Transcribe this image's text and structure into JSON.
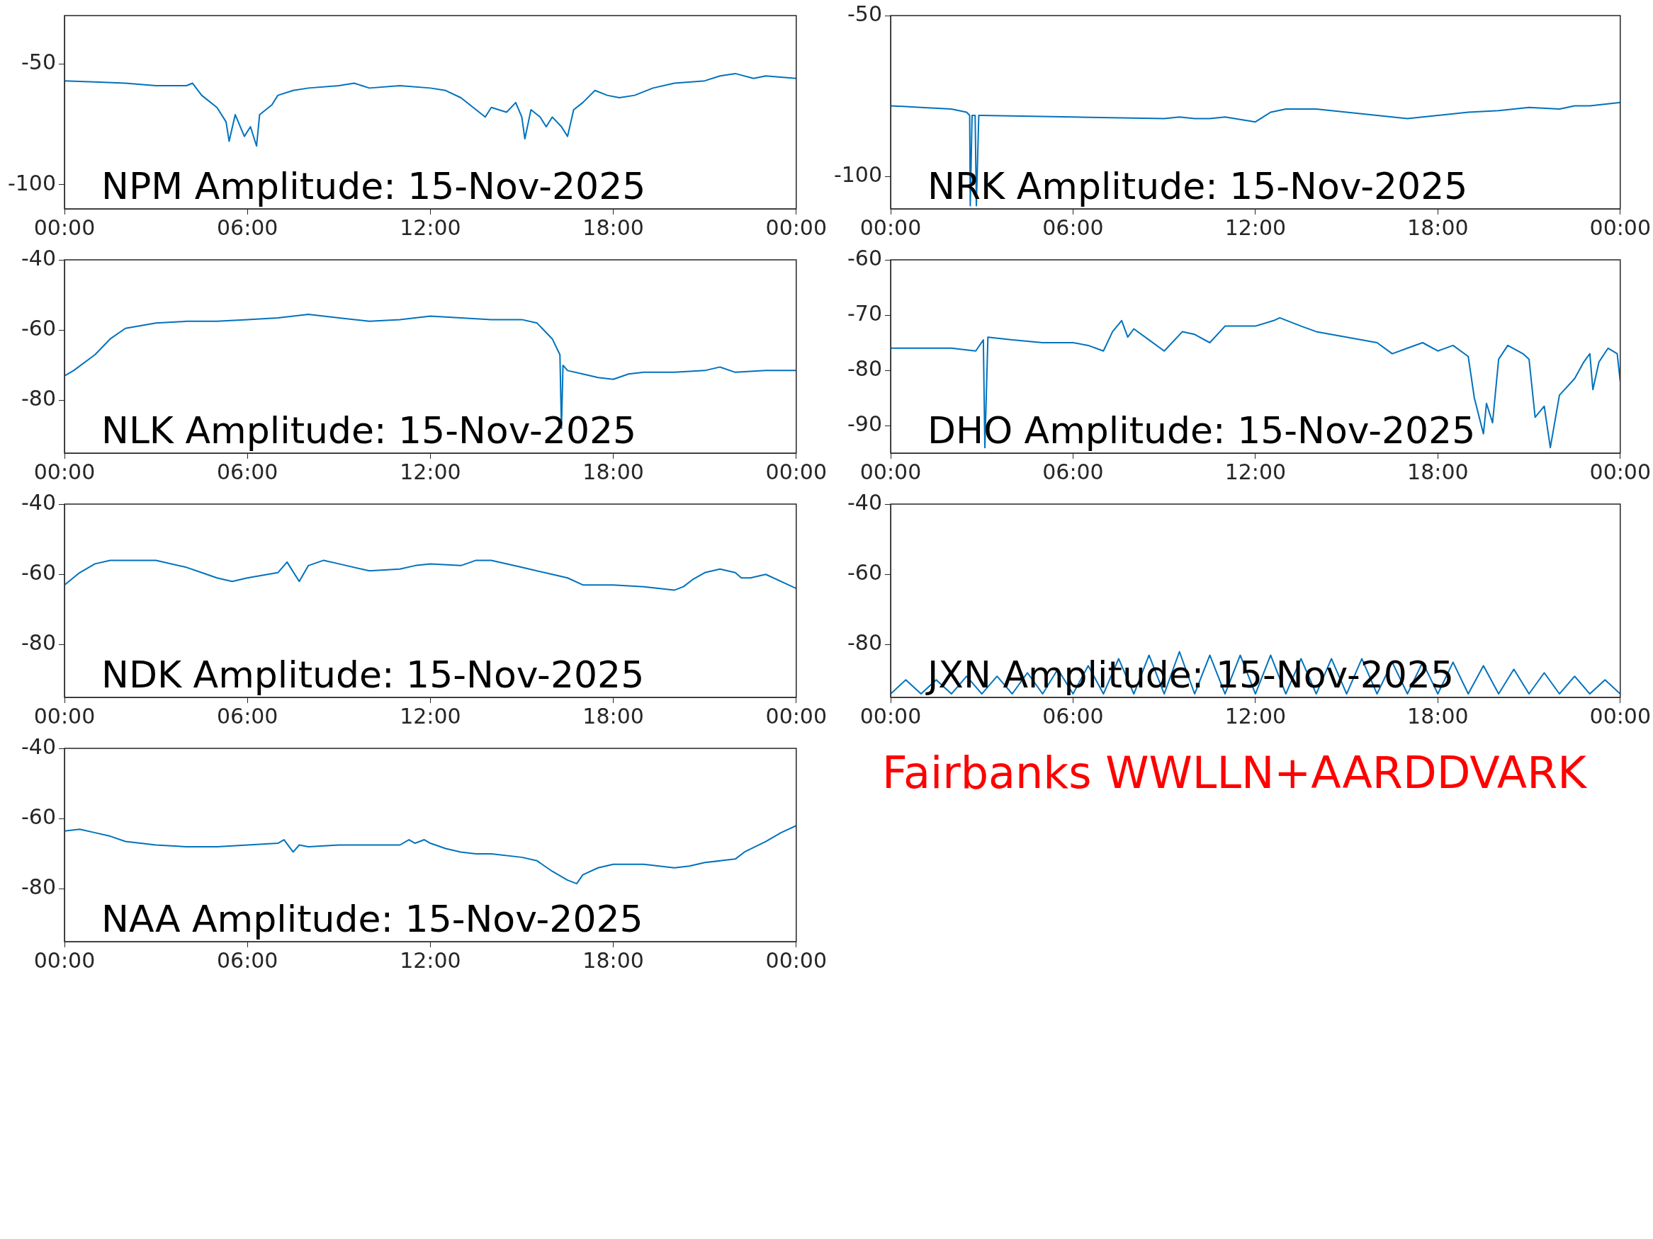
{
  "chart_data": [
    {
      "type": "line",
      "title": "NPM Amplitude: 15-Nov-2025",
      "color": "#0072bd",
      "legend": false,
      "grid": false,
      "marker": "none",
      "line_style": "solid",
      "xlim": [
        0,
        24
      ],
      "ylim": [
        -110,
        -30
      ],
      "yticks": [
        -100,
        -50
      ],
      "xticks": [
        {
          "value": 0,
          "label": "00:00"
        },
        {
          "value": 6,
          "label": "06:00"
        },
        {
          "value": 12,
          "label": "12:00"
        },
        {
          "value": 18,
          "label": "18:00"
        },
        {
          "value": 24,
          "label": "00:00"
        }
      ],
      "x": [
        0,
        1,
        2,
        3,
        4,
        4.2,
        4.5,
        5,
        5.3,
        5.4,
        5.6,
        5.9,
        6.1,
        6.3,
        6.4,
        6.8,
        7,
        7.5,
        8,
        9,
        9.5,
        10,
        11,
        12,
        12.5,
        13,
        13.5,
        13.8,
        14,
        14.5,
        14.8,
        15,
        15.1,
        15.3,
        15.6,
        15.8,
        16,
        16.3,
        16.5,
        16.7,
        17,
        17.4,
        17.8,
        18.2,
        18.7,
        19.3,
        20,
        21,
        21.5,
        22,
        22.6,
        23,
        24
      ],
      "values": [
        -57,
        -57.5,
        -58,
        -59,
        -59,
        -58,
        -63,
        -68,
        -74,
        -82,
        -71,
        -80,
        -76,
        -84,
        -71,
        -67,
        -63,
        -61,
        -60,
        -59,
        -58,
        -60,
        -59,
        -60,
        -61,
        -64,
        -69,
        -72,
        -68,
        -70,
        -66,
        -72,
        -81,
        -69,
        -72,
        -76,
        -72,
        -76,
        -80,
        -69,
        -66,
        -61,
        -63,
        -64,
        -63,
        -60,
        -58,
        -57,
        -55,
        -54,
        -56,
        -55,
        -56
      ]
    },
    {
      "type": "line",
      "title": "NRK Amplitude: 15-Nov-2025",
      "color": "#0072bd",
      "legend": false,
      "grid": false,
      "marker": "none",
      "line_style": "solid",
      "xlim": [
        0,
        24
      ],
      "ylim": [
        -110,
        -50
      ],
      "yticks": [
        -100,
        -50
      ],
      "xticks": [
        {
          "value": 0,
          "label": "00:00"
        },
        {
          "value": 6,
          "label": "06:00"
        },
        {
          "value": 12,
          "label": "12:00"
        },
        {
          "value": 18,
          "label": "18:00"
        },
        {
          "value": 24,
          "label": "00:00"
        }
      ],
      "x": [
        0,
        1,
        2,
        2.5,
        2.6,
        2.62,
        2.68,
        2.78,
        2.82,
        2.9,
        3,
        6,
        9,
        9.5,
        10,
        10.5,
        11,
        12,
        12.5,
        13,
        14,
        15,
        16,
        17,
        18,
        19,
        20,
        21,
        22,
        22.5,
        23,
        24
      ],
      "values": [
        -78,
        -78.5,
        -79,
        -80,
        -81,
        -109,
        -81,
        -81,
        -109,
        -81,
        -81,
        -81.5,
        -82,
        -81.5,
        -82,
        -82,
        -81.5,
        -83,
        -80,
        -79,
        -79,
        -80,
        -81,
        -82,
        -81,
        -80,
        -79.5,
        -78.5,
        -79,
        -78,
        -78,
        -77
      ]
    },
    {
      "type": "line",
      "title": "NLK Amplitude: 15-Nov-2025",
      "color": "#0072bd",
      "legend": false,
      "grid": false,
      "marker": "none",
      "line_style": "solid",
      "xlim": [
        0,
        24
      ],
      "ylim": [
        -95,
        -40
      ],
      "yticks": [
        -80,
        -60,
        -40
      ],
      "xticks": [
        {
          "value": 0,
          "label": "00:00"
        },
        {
          "value": 6,
          "label": "06:00"
        },
        {
          "value": 12,
          "label": "12:00"
        },
        {
          "value": 18,
          "label": "18:00"
        },
        {
          "value": 24,
          "label": "00:00"
        }
      ],
      "x": [
        0,
        0.3,
        1,
        1.5,
        2,
        3,
        4,
        5,
        6,
        7,
        8,
        9,
        10,
        11,
        12,
        13,
        14,
        15,
        15.5,
        16,
        16.25,
        16.3,
        16.35,
        16.5,
        17,
        17.5,
        18,
        18.5,
        19,
        20,
        21,
        21.5,
        22,
        23,
        24
      ],
      "values": [
        -73,
        -71.5,
        -67,
        -62.5,
        -59.5,
        -58,
        -57.5,
        -57.5,
        -57,
        -56.5,
        -55.5,
        -56.5,
        -57.5,
        -57,
        -56,
        -56.5,
        -57,
        -57,
        -58,
        -62.5,
        -67,
        -88,
        -70,
        -71.5,
        -72.5,
        -73.5,
        -74,
        -72.5,
        -72,
        -72,
        -71.5,
        -70.5,
        -72,
        -71.5,
        -71.5
      ]
    },
    {
      "type": "line",
      "title": "DHO Amplitude: 15-Nov-2025",
      "color": "#0072bd",
      "legend": false,
      "grid": false,
      "marker": "none",
      "line_style": "solid",
      "xlim": [
        0,
        24
      ],
      "ylim": [
        -95,
        -60
      ],
      "yticks": [
        -90,
        -80,
        -70,
        -60
      ],
      "xticks": [
        {
          "value": 0,
          "label": "00:00"
        },
        {
          "value": 6,
          "label": "06:00"
        },
        {
          "value": 12,
          "label": "12:00"
        },
        {
          "value": 18,
          "label": "18:00"
        },
        {
          "value": 24,
          "label": "00:00"
        }
      ],
      "x": [
        0,
        2,
        2.8,
        3.05,
        3.1,
        3.2,
        4,
        5,
        6,
        6.5,
        7,
        7.3,
        7.6,
        7.8,
        8,
        8.5,
        9,
        9.6,
        10,
        10.5,
        11,
        12,
        12.6,
        12.8,
        13.5,
        14,
        15,
        16,
        16.5,
        17,
        17.5,
        18,
        18.5,
        19,
        19.2,
        19.5,
        19.6,
        19.8,
        20,
        20.3,
        20.8,
        21,
        21.2,
        21.5,
        21.7,
        22,
        22.5,
        22.8,
        23,
        23.1,
        23.3,
        23.6,
        23.9,
        24
      ],
      "values": [
        -76,
        -76,
        -76.5,
        -74.5,
        -94,
        -74,
        -74.5,
        -75,
        -75,
        -75.5,
        -76.5,
        -73,
        -71,
        -74,
        -72.5,
        -74.5,
        -76.5,
        -73,
        -73.5,
        -75,
        -72,
        -72,
        -71,
        -70.5,
        -72,
        -73,
        -74,
        -75,
        -77,
        -76,
        -75,
        -76.5,
        -75.5,
        -77.5,
        -85,
        -91.5,
        -86,
        -89.5,
        -78,
        -75.5,
        -77,
        -78,
        -88.5,
        -86.5,
        -94,
        -84.5,
        -81.5,
        -78.5,
        -77,
        -83.5,
        -78.5,
        -76,
        -77,
        -82
      ]
    },
    {
      "type": "line",
      "title": "NDK Amplitude: 15-Nov-2025",
      "color": "#0072bd",
      "legend": false,
      "grid": false,
      "marker": "none",
      "line_style": "solid",
      "xlim": [
        0,
        24
      ],
      "ylim": [
        -95,
        -40
      ],
      "yticks": [
        -80,
        -60,
        -40
      ],
      "xticks": [
        {
          "value": 0,
          "label": "00:00"
        },
        {
          "value": 6,
          "label": "06:00"
        },
        {
          "value": 12,
          "label": "12:00"
        },
        {
          "value": 18,
          "label": "18:00"
        },
        {
          "value": 24,
          "label": "00:00"
        }
      ],
      "x": [
        0,
        0.5,
        1,
        1.5,
        3,
        4,
        4.5,
        5,
        5.5,
        6,
        7,
        7.3,
        7.7,
        8,
        8.5,
        9,
        10,
        11,
        11.5,
        12,
        13,
        13.5,
        14,
        15,
        16,
        16.5,
        17,
        18,
        19,
        20,
        20.3,
        20.6,
        21,
        21.5,
        22,
        22.2,
        22.5,
        23,
        24
      ],
      "values": [
        -63,
        -59.5,
        -57,
        -56,
        -56,
        -58,
        -59.5,
        -61,
        -62,
        -61,
        -59.5,
        -56.5,
        -62,
        -57.5,
        -56,
        -57,
        -59,
        -58.5,
        -57.5,
        -57,
        -57.5,
        -56,
        -56,
        -58,
        -60,
        -61,
        -63,
        -63,
        -63.5,
        -64.5,
        -63.5,
        -61.5,
        -59.5,
        -58.5,
        -59.5,
        -61,
        -61,
        -60,
        -64
      ]
    },
    {
      "type": "line",
      "title": "JXN Amplitude: 15-Nov-2025",
      "color": "#0072bd",
      "legend": false,
      "grid": false,
      "marker": "none",
      "line_style": "solid",
      "xlim": [
        0,
        24
      ],
      "ylim": [
        -95,
        -40
      ],
      "yticks": [
        -80,
        -60,
        -40
      ],
      "xticks": [
        {
          "value": 0,
          "label": "00:00"
        },
        {
          "value": 6,
          "label": "06:00"
        },
        {
          "value": 12,
          "label": "12:00"
        },
        {
          "value": 18,
          "label": "18:00"
        },
        {
          "value": 24,
          "label": "00:00"
        }
      ],
      "x": [
        0,
        0.5,
        1,
        1.5,
        2,
        2.5,
        3,
        3.5,
        4,
        4.5,
        5,
        5.5,
        6,
        6.5,
        7,
        7.5,
        8,
        8.5,
        9,
        9.5,
        10,
        10.5,
        11,
        11.5,
        12,
        12.5,
        13,
        13.5,
        14,
        14.5,
        15,
        15.5,
        16,
        16.5,
        17,
        17.5,
        18,
        18.5,
        19,
        19.5,
        20,
        20.5,
        21,
        21.5,
        22,
        22.5,
        23,
        23.5,
        24
      ],
      "values": [
        -94,
        -90,
        -94,
        -90,
        -94,
        -89,
        -94,
        -89,
        -94,
        -88,
        -94,
        -87,
        -94,
        -86,
        -94,
        -84,
        -94,
        -83,
        -94,
        -82,
        -94,
        -83,
        -94,
        -83,
        -94,
        -83,
        -94,
        -84,
        -94,
        -84,
        -94,
        -84,
        -94,
        -85,
        -94,
        -85,
        -94,
        -85,
        -94,
        -86,
        -94,
        -87,
        -94,
        -88,
        -94,
        -89,
        -94,
        -90,
        -94
      ]
    },
    {
      "type": "line",
      "title": "NAA Amplitude: 15-Nov-2025",
      "color": "#0072bd",
      "legend": false,
      "grid": false,
      "marker": "none",
      "line_style": "solid",
      "xlim": [
        0,
        24
      ],
      "ylim": [
        -95,
        -40
      ],
      "yticks": [
        -80,
        -60,
        -40
      ],
      "xticks": [
        {
          "value": 0,
          "label": "00:00"
        },
        {
          "value": 6,
          "label": "06:00"
        },
        {
          "value": 12,
          "label": "12:00"
        },
        {
          "value": 18,
          "label": "18:00"
        },
        {
          "value": 24,
          "label": "00:00"
        }
      ],
      "x": [
        0,
        0.5,
        1,
        1.5,
        2,
        3,
        4,
        5,
        6,
        7,
        7.2,
        7.5,
        7.7,
        8,
        9,
        10,
        11,
        11.3,
        11.5,
        11.8,
        12,
        12.5,
        13,
        13.5,
        14,
        15,
        15.5,
        16,
        16.5,
        16.8,
        17,
        17.5,
        18,
        19,
        20,
        20.5,
        21,
        22,
        22.3,
        23,
        23.5,
        24
      ],
      "values": [
        -63.5,
        -63,
        -64,
        -65,
        -66.5,
        -67.5,
        -68,
        -68,
        -67.5,
        -67,
        -66,
        -69.5,
        -67.5,
        -68,
        -67.5,
        -67.5,
        -67.5,
        -66,
        -67,
        -66,
        -67,
        -68.5,
        -69.5,
        -70,
        -70,
        -71,
        -72,
        -75,
        -77.5,
        -78.5,
        -76,
        -74,
        -73,
        -73,
        -74,
        -73.5,
        -72.5,
        -71.5,
        -69.5,
        -66.5,
        -64,
        -62
      ]
    },
    {
      "type": "other",
      "annotations": [
        "Fairbanks WWLLN+AARDDVARK"
      ]
    }
  ]
}
